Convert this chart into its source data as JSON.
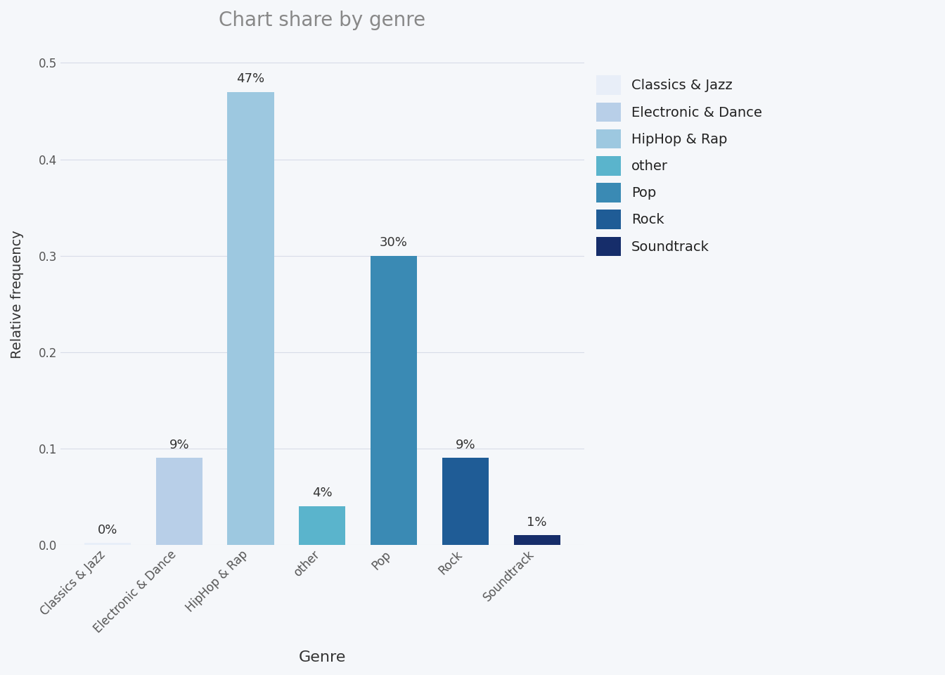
{
  "title": "Chart share by genre",
  "categories": [
    "Classics & Jazz",
    "Electronic & Dance",
    "HipHop & Rap",
    "other",
    "Pop",
    "Rock",
    "Soundtrack"
  ],
  "values": [
    0.002,
    0.09,
    0.47,
    0.04,
    0.3,
    0.09,
    0.01
  ],
  "labels": [
    "0%",
    "9%",
    "47%",
    "4%",
    "30%",
    "9%",
    "1%"
  ],
  "bar_colors": [
    "#e8eef8",
    "#b8cfe8",
    "#9dc8e0",
    "#5ab4cc",
    "#3a8ab4",
    "#1f5c96",
    "#162d6a"
  ],
  "xlabel": "Genre",
  "ylabel": "Relative frequency",
  "ylim": [
    0,
    0.52
  ],
  "yticks": [
    0.0,
    0.1,
    0.2,
    0.3,
    0.4,
    0.5
  ],
  "legend_labels": [
    "Classics & Jazz",
    "Electronic & Dance",
    "HipHop & Rap",
    "other",
    "Pop",
    "Rock",
    "Soundtrack"
  ],
  "legend_colors": [
    "#e8eef8",
    "#b8cfe8",
    "#9dc8e0",
    "#5ab4cc",
    "#3a8ab4",
    "#1f5c96",
    "#162d6a"
  ],
  "background_color": "#f5f7fa",
  "grid_color": "#d8dce8",
  "title_color": "#888888",
  "axis_label_color": "#333333",
  "tick_label_color": "#555555"
}
